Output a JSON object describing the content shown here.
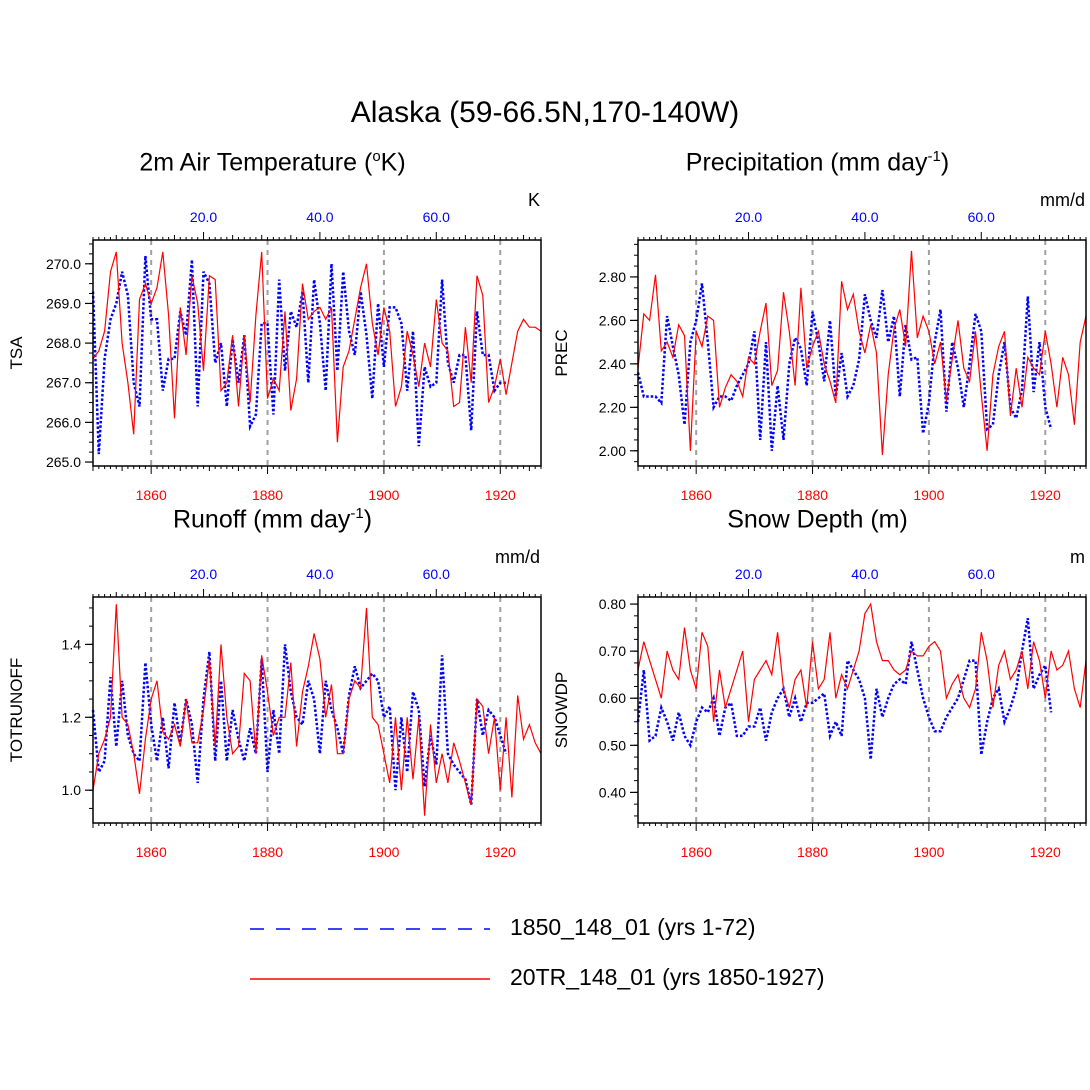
{
  "title": "Alaska (59-66.5N,170-140W)",
  "colors": {
    "series_1850": "#0000ff",
    "series_20TR": "#ff0000",
    "grid": "#a0a0a0",
    "axis": "#000000"
  },
  "legend": [
    {
      "label": "1850_148_01 (yrs 1-72)",
      "style": "dashed",
      "color": "#0000ff"
    },
    {
      "label": "20TR_148_01 (yrs 1850-1927)",
      "style": "solid",
      "color": "#ff0000"
    }
  ],
  "chart_data": [
    {
      "type": "line",
      "title": "2m Air Temperature (",
      "title_sup": "o",
      "title_tail": "K)",
      "title_full": "2m Air Temperature (oK)",
      "units": "K",
      "ylabel": "TSA",
      "ylim": [
        264.9,
        270.6
      ],
      "yticks": [
        265.0,
        266.0,
        267.0,
        268.0,
        269.0,
        270.0
      ],
      "ytick_labels": [
        "265.0",
        "266.0",
        "267.0",
        "268.0",
        "269.0",
        "270.0"
      ],
      "x_bottom_label_ticks": [
        1860,
        1880,
        1900,
        1920
      ],
      "x_top_label_ticks": [
        "20.0",
        "40.0",
        "60.0"
      ],
      "series": [
        {
          "name": "1850_148_01 (yrs 1-72)",
          "axis": "top",
          "values": [
            269.3,
            265.2,
            267.6,
            268.6,
            269.0,
            269.8,
            269.2,
            267.0,
            266.4,
            270.2,
            268.6,
            268.6,
            266.8,
            267.6,
            267.6,
            268.8,
            268.2,
            270.1,
            266.4,
            269.8,
            269.5,
            267.5,
            268.0,
            266.4,
            268.1,
            267.0,
            268.2,
            265.9,
            266.2,
            268.5,
            268.5,
            266.2,
            269.6,
            267.3,
            268.8,
            268.4,
            269.3,
            267.0,
            269.6,
            268.5,
            266.8,
            270.0,
            267.3,
            269.8,
            268.3,
            267.7,
            269.3,
            268.2,
            266.6,
            269.0,
            267.4,
            268.9,
            268.9,
            268.5,
            266.8,
            268.3,
            265.4,
            267.4,
            266.9,
            267.0,
            269.6,
            267.5,
            267.0,
            267.7,
            267.7,
            265.8,
            268.8,
            267.7,
            267.7,
            266.8,
            267.0,
            267.0
          ]
        },
        {
          "name": "20TR_148_01 (yrs 1850-1927)",
          "axis": "bottom",
          "values": [
            267.6,
            267.8,
            268.3,
            269.8,
            270.3,
            268.0,
            267.0,
            265.7,
            269.1,
            269.5,
            269.0,
            269.4,
            270.3,
            268.7,
            266.1,
            268.9,
            267.7,
            269.7,
            269.0,
            267.3,
            269.7,
            269.6,
            266.8,
            267.0,
            268.2,
            266.4,
            268.2,
            266.5,
            268.7,
            270.3,
            266.6,
            267.1,
            266.8,
            268.8,
            266.3,
            267.1,
            269.5,
            268.6,
            268.8,
            268.9,
            268.6,
            268.9,
            265.5,
            267.4,
            267.8,
            268.6,
            269.4,
            270.0,
            268.5,
            267.7,
            268.9,
            268.3,
            266.4,
            266.9,
            268.3,
            267.7,
            266.9,
            268.0,
            267.4,
            269.1,
            268.0,
            267.8,
            266.4,
            266.5,
            268.4,
            267.0,
            269.7,
            269.2,
            266.5,
            266.9,
            267.6,
            266.7,
            267.5,
            268.3,
            268.6,
            268.4,
            268.4,
            268.3
          ]
        }
      ]
    },
    {
      "type": "line",
      "title": "Precipitation (mm day",
      "title_sup": "-1",
      "title_tail": ")",
      "title_full": "Precipitation (mm day-1)",
      "units": "mm/d",
      "ylabel": "PREC",
      "ylim": [
        1.93,
        2.97
      ],
      "yticks": [
        2.0,
        2.2,
        2.4,
        2.6,
        2.8
      ],
      "ytick_labels": [
        "2.00",
        "2.20",
        "2.40",
        "2.60",
        "2.80"
      ],
      "x_bottom_label_ticks": [
        1860,
        1880,
        1900,
        1920
      ],
      "x_top_label_ticks": [
        "20.0",
        "40.0",
        "60.0"
      ],
      "series": [
        {
          "name": "1850_148_01 (yrs 1-72)",
          "axis": "top",
          "values": [
            2.36,
            2.25,
            2.25,
            2.25,
            2.22,
            2.62,
            2.48,
            2.35,
            2.12,
            2.5,
            2.6,
            2.77,
            2.5,
            2.2,
            2.25,
            2.25,
            2.23,
            2.3,
            2.35,
            2.4,
            2.55,
            2.05,
            2.5,
            2.0,
            2.3,
            2.05,
            2.4,
            2.52,
            2.47,
            2.3,
            2.64,
            2.5,
            2.32,
            2.6,
            2.25,
            2.45,
            2.25,
            2.3,
            2.42,
            2.72,
            2.6,
            2.52,
            2.74,
            2.5,
            2.62,
            2.25,
            2.58,
            2.42,
            2.43,
            2.08,
            2.22,
            2.5,
            2.65,
            2.18,
            2.5,
            2.38,
            2.2,
            2.4,
            2.63,
            2.55,
            2.1,
            2.12,
            2.35,
            2.5,
            2.2,
            2.15,
            2.28,
            2.71,
            2.27,
            2.5,
            2.2,
            2.1
          ]
        },
        {
          "name": "20TR_148_01 (yrs 1850-1927)",
          "axis": "bottom",
          "values": [
            2.38,
            2.63,
            2.6,
            2.81,
            2.46,
            2.5,
            2.43,
            2.58,
            2.53,
            2.0,
            2.55,
            2.48,
            2.62,
            2.6,
            2.2,
            2.29,
            2.35,
            2.32,
            2.25,
            2.43,
            2.4,
            2.55,
            2.68,
            2.3,
            2.37,
            2.73,
            2.55,
            2.3,
            2.75,
            2.38,
            2.48,
            2.55,
            2.4,
            2.32,
            2.22,
            2.78,
            2.65,
            2.72,
            2.55,
            2.45,
            2.58,
            2.45,
            1.98,
            2.35,
            2.56,
            2.65,
            2.48,
            2.92,
            2.52,
            2.62,
            2.55,
            2.4,
            2.5,
            2.23,
            2.42,
            2.6,
            2.38,
            2.32,
            2.55,
            2.26,
            2.0,
            2.35,
            2.48,
            2.55,
            2.16,
            2.38,
            2.2,
            2.43,
            2.38,
            2.35,
            2.55,
            2.4,
            2.2,
            2.43,
            2.35,
            2.12,
            2.5,
            2.62
          ]
        }
      ]
    },
    {
      "type": "line",
      "title": "Runoff (mm day",
      "title_sup": "-1",
      "title_tail": ")",
      "title_full": "Runoff (mm day-1)",
      "units": "mm/d",
      "ylabel": "TOTRUNOFF",
      "ylim": [
        0.91,
        1.53
      ],
      "yticks": [
        1.0,
        1.2,
        1.4
      ],
      "ytick_labels": [
        "1.0",
        "1.2",
        "1.4"
      ],
      "x_bottom_label_ticks": [
        1860,
        1880,
        1900,
        1920
      ],
      "x_top_label_ticks": [
        "20.0",
        "40.0",
        "60.0"
      ],
      "series": [
        {
          "name": "1850_148_01 (yrs 1-72)",
          "axis": "top",
          "values": [
            1.22,
            1.05,
            1.08,
            1.31,
            1.12,
            1.3,
            1.15,
            1.1,
            1.08,
            1.35,
            1.18,
            1.08,
            1.2,
            1.06,
            1.24,
            1.13,
            1.25,
            1.18,
            1.02,
            1.25,
            1.38,
            1.08,
            1.3,
            1.08,
            1.22,
            1.14,
            1.08,
            1.17,
            1.1,
            1.36,
            1.05,
            1.22,
            1.1,
            1.4,
            1.27,
            1.2,
            1.18,
            1.3,
            1.25,
            1.1,
            1.3,
            1.22,
            1.17,
            1.1,
            1.26,
            1.34,
            1.28,
            1.3,
            1.32,
            1.3,
            1.2,
            1.23,
            1.0,
            1.2,
            1.05,
            1.27,
            1.22,
            1.01,
            1.15,
            1.07,
            1.37,
            1.1,
            1.07,
            1.05,
            1.03,
            0.96,
            1.25,
            1.15,
            1.22,
            1.2,
            1.15,
            1.1
          ]
        },
        {
          "name": "20TR_148_01 (yrs 1850-1927)",
          "axis": "bottom",
          "values": [
            1.0,
            1.1,
            1.14,
            1.2,
            1.51,
            1.2,
            1.18,
            1.1,
            0.99,
            1.14,
            1.25,
            1.3,
            1.16,
            1.14,
            1.18,
            1.12,
            1.25,
            1.13,
            1.13,
            1.22,
            1.36,
            1.12,
            1.4,
            1.2,
            1.1,
            1.12,
            1.32,
            1.3,
            1.1,
            1.37,
            1.27,
            1.15,
            1.2,
            1.2,
            1.35,
            1.12,
            1.27,
            1.34,
            1.43,
            1.36,
            1.2,
            1.29,
            1.1,
            1.1,
            1.25,
            1.3,
            1.28,
            1.5,
            1.2,
            1.18,
            1.1,
            1.02,
            1.2,
            1.0,
            1.2,
            1.03,
            1.2,
            0.93,
            1.18,
            1.02,
            1.1,
            1.02,
            1.13,
            1.08,
            1.02,
            0.96,
            1.25,
            1.23,
            1.1,
            1.2,
            1.0,
            1.2,
            0.98,
            1.26,
            1.14,
            1.18,
            1.13,
            1.1
          ]
        }
      ]
    },
    {
      "type": "line",
      "title": "Snow Depth (m)",
      "title_sup": "",
      "title_tail": "",
      "title_full": "Snow Depth (m)",
      "units": "m",
      "ylabel": "SNOWDP",
      "ylim": [
        0.335,
        0.815
      ],
      "yticks": [
        0.4,
        0.5,
        0.6,
        0.7,
        0.8
      ],
      "ytick_labels": [
        "0.40",
        "0.50",
        "0.60",
        "0.70",
        "0.80"
      ],
      "x_bottom_label_ticks": [
        1860,
        1880,
        1900,
        1920
      ],
      "x_top_label_ticks": [
        "20.0",
        "40.0",
        "60.0"
      ],
      "series": [
        {
          "name": "1850_148_01 (yrs 1-72)",
          "axis": "top",
          "values": [
            0.55,
            0.66,
            0.51,
            0.52,
            0.58,
            0.55,
            0.51,
            0.57,
            0.52,
            0.5,
            0.55,
            0.58,
            0.57,
            0.6,
            0.52,
            0.58,
            0.59,
            0.52,
            0.52,
            0.54,
            0.54,
            0.58,
            0.51,
            0.57,
            0.6,
            0.62,
            0.56,
            0.6,
            0.55,
            0.59,
            0.59,
            0.6,
            0.61,
            0.52,
            0.55,
            0.52,
            0.68,
            0.66,
            0.64,
            0.6,
            0.47,
            0.62,
            0.56,
            0.6,
            0.63,
            0.64,
            0.63,
            0.72,
            0.66,
            0.6,
            0.56,
            0.53,
            0.53,
            0.56,
            0.58,
            0.6,
            0.64,
            0.68,
            0.68,
            0.48,
            0.55,
            0.6,
            0.62,
            0.55,
            0.58,
            0.62,
            0.7,
            0.77,
            0.62,
            0.65,
            0.67,
            0.57
          ]
        },
        {
          "name": "20TR_148_01 (yrs 1850-1927)",
          "axis": "bottom",
          "values": [
            0.66,
            0.72,
            0.68,
            0.64,
            0.6,
            0.7,
            0.66,
            0.64,
            0.75,
            0.66,
            0.62,
            0.74,
            0.71,
            0.55,
            0.66,
            0.58,
            0.62,
            0.66,
            0.7,
            0.55,
            0.64,
            0.66,
            0.68,
            0.65,
            0.74,
            0.62,
            0.58,
            0.64,
            0.66,
            0.58,
            0.72,
            0.62,
            0.64,
            0.74,
            0.6,
            0.65,
            0.62,
            0.66,
            0.7,
            0.78,
            0.8,
            0.72,
            0.68,
            0.68,
            0.66,
            0.65,
            0.66,
            0.7,
            0.69,
            0.69,
            0.71,
            0.72,
            0.7,
            0.6,
            0.63,
            0.65,
            0.6,
            0.58,
            0.62,
            0.74,
            0.68,
            0.58,
            0.67,
            0.7,
            0.64,
            0.66,
            0.7,
            0.62,
            0.72,
            0.68,
            0.6,
            0.7,
            0.66,
            0.67,
            0.7,
            0.62,
            0.58,
            0.68
          ]
        }
      ]
    }
  ]
}
